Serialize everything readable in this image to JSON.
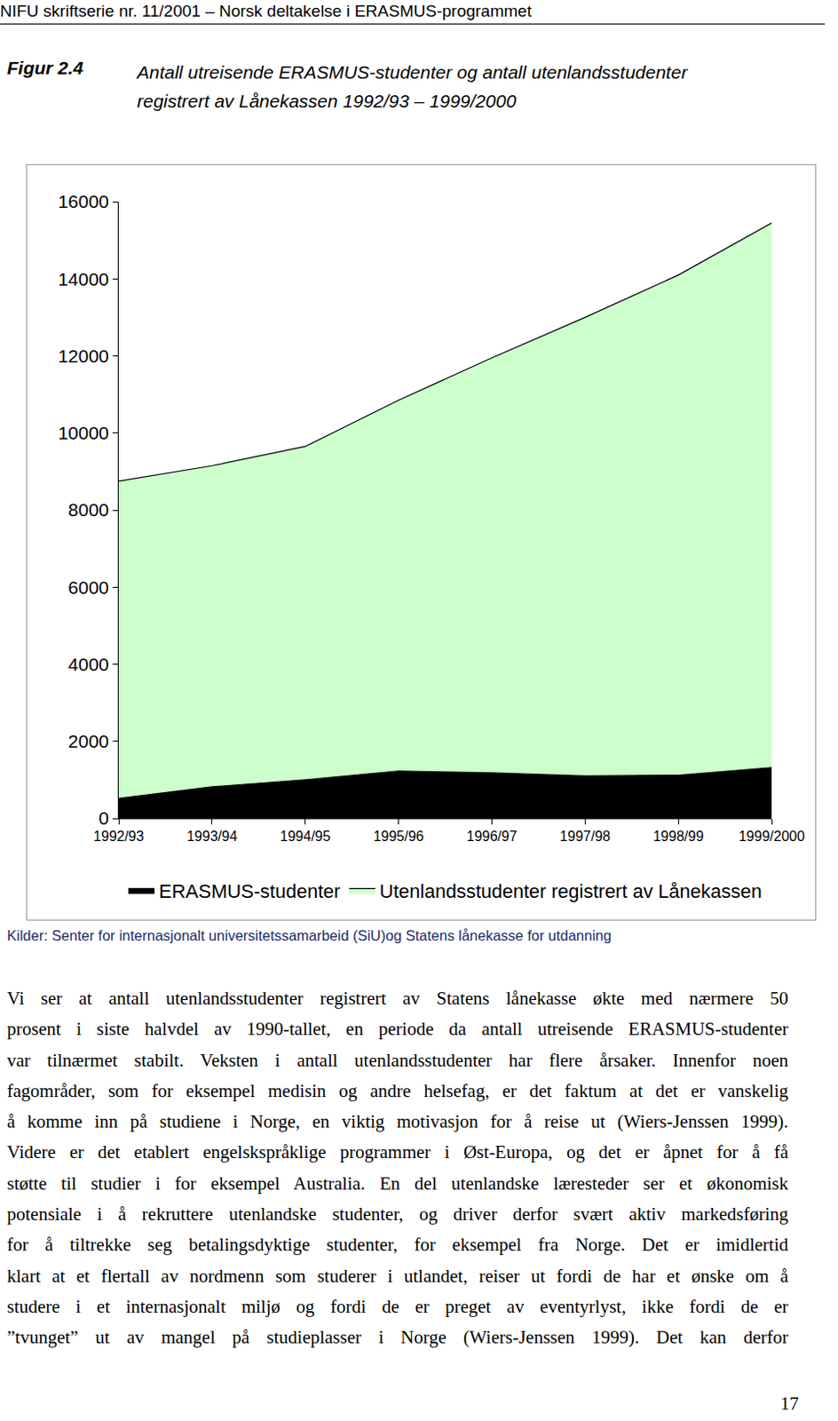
{
  "header": "NIFU skriftserie nr. 11/2001 – Norsk deltakelse i ERASMUS-programmet",
  "figure": {
    "label": "Figur 2.4",
    "caption": [
      "Antall utreisende ERASMUS-studenter og antall utenlandsstudenter",
      "registrert av Lånekassen 1992/93 – 1999/2000"
    ]
  },
  "chart_data": {
    "type": "area",
    "stacked": true,
    "categories": [
      "1992/93",
      "1993/94",
      "1994/95",
      "1995/96",
      "1996/97",
      "1997/98",
      "1998/99",
      "1999/2000"
    ],
    "series": [
      {
        "name": "ERASMUS-studenter",
        "color": "#000000",
        "values": [
          520,
          820,
          1000,
          1230,
          1180,
          1100,
          1120,
          1320
        ]
      },
      {
        "name": "Utenlandsstudenter registrert av Lånekassen",
        "color": "#ccffcc",
        "values": [
          8230,
          8330,
          8650,
          9620,
          10770,
          11900,
          12980,
          14130
        ]
      }
    ],
    "ylim": [
      0,
      16000
    ],
    "yticks": [
      0,
      2000,
      4000,
      6000,
      8000,
      10000,
      12000,
      14000,
      16000
    ],
    "grid": false,
    "legend": "bottom"
  },
  "source": "Kilder: Senter for internasjonalt universitetssamarbeid (SiU)og Statens lånekasse for utdanning",
  "body": [
    "Vi ser at antall utenlandsstudenter registrert av Statens lånekasse økte med nærmere 50",
    "prosent i siste halvdel av 1990-tallet, en periode da antall utreisende ERASMUS-studenter",
    "var tilnærmet stabilt. Veksten i antall utenlandsstudenter har flere årsaker. Innenfor noen",
    "fagområder, som for eksempel medisin og andre helsefag, er det faktum at det er vanskelig",
    "å komme inn på studiene i Norge, en viktig motivasjon for å reise ut (Wiers-Jenssen 1999).",
    "Videre er det etablert engelskspråklige programmer i Øst-Europa, og det er åpnet for å få",
    "støtte til studier i for eksempel Australia. En del utenlandske læresteder ser et økonomisk",
    "potensiale i å rekruttere utenlandske studenter, og driver derfor svært aktiv markedsføring",
    "for å tiltrekke seg betalingsdyktige studenter, for eksempel fra Norge. Det er imidlertid",
    "klart at et flertall av nordmenn som studerer i utlandet, reiser ut fordi de har et ønske om å",
    "studere i et internasjonalt miljø og fordi de er preget av eventyrlyst, ikke fordi de er",
    "”tvunget” ut av mangel på studieplasser i Norge (Wiers-Jenssen 1999). Det kan derfor"
  ],
  "page_number": "17"
}
